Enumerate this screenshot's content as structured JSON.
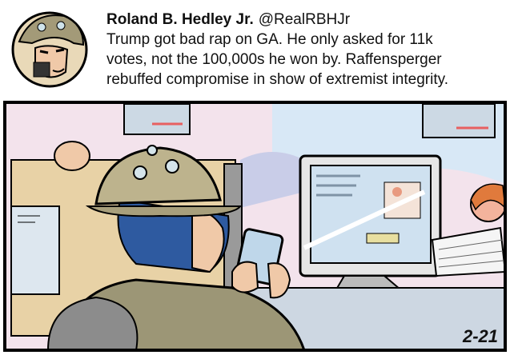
{
  "tweet": {
    "name": "Roland B. Hedley Jr.",
    "handle": "@RealRBHJr",
    "text_lines": [
      "Trump got bad rap on GA. He only asked for 11k",
      "votes, not the 100,000s he won by. Raffensperger",
      "rebuffed compromise in show of extremist integrity."
    ]
  },
  "panel": {
    "date": "2-21"
  }
}
